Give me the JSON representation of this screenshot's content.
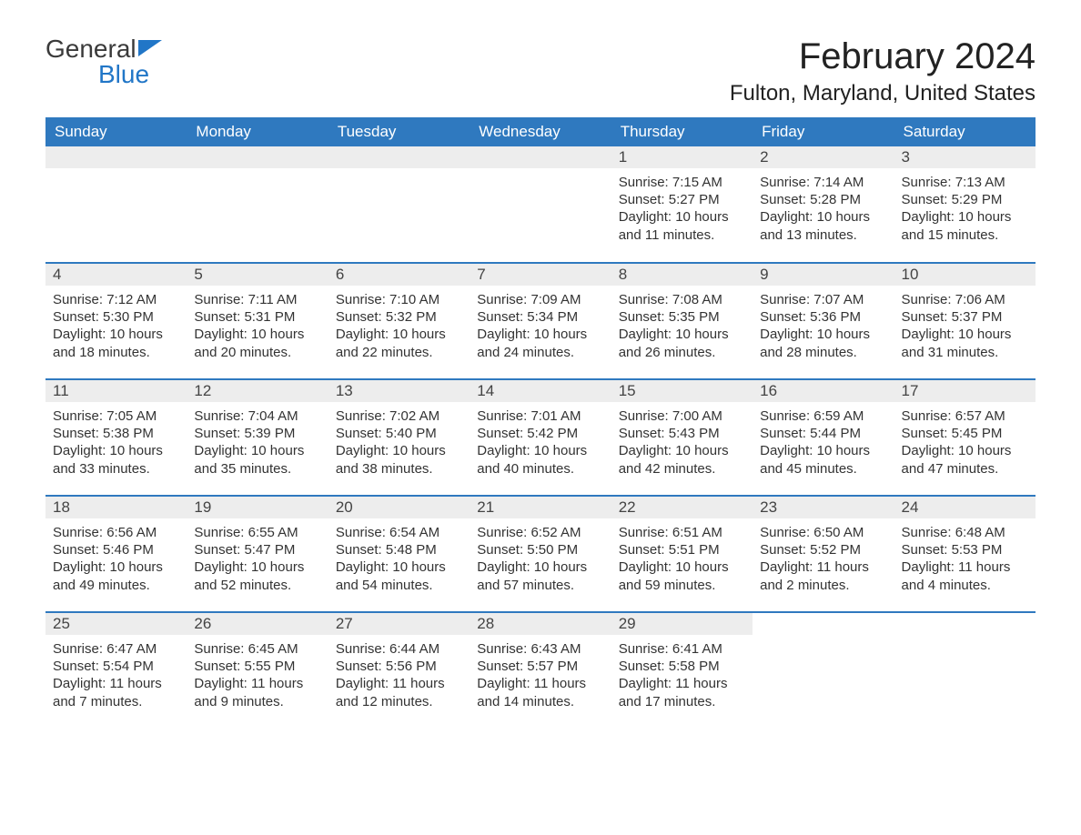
{
  "logo": {
    "word1": "General",
    "word2": "Blue"
  },
  "title": "February 2024",
  "location": "Fulton, Maryland, United States",
  "colors": {
    "header_bg": "#2f79bf",
    "header_fg": "#ffffff",
    "daynum_bg": "#ededed",
    "border": "#2f79bf",
    "logo_blue": "#2176c7",
    "text": "#333333"
  },
  "day_headers": [
    "Sunday",
    "Monday",
    "Tuesday",
    "Wednesday",
    "Thursday",
    "Friday",
    "Saturday"
  ],
  "weeks": [
    [
      null,
      null,
      null,
      null,
      {
        "n": "1",
        "sunrise": "Sunrise: 7:15 AM",
        "sunset": "Sunset: 5:27 PM",
        "daylight": "Daylight: 10 hours and 11 minutes."
      },
      {
        "n": "2",
        "sunrise": "Sunrise: 7:14 AM",
        "sunset": "Sunset: 5:28 PM",
        "daylight": "Daylight: 10 hours and 13 minutes."
      },
      {
        "n": "3",
        "sunrise": "Sunrise: 7:13 AM",
        "sunset": "Sunset: 5:29 PM",
        "daylight": "Daylight: 10 hours and 15 minutes."
      }
    ],
    [
      {
        "n": "4",
        "sunrise": "Sunrise: 7:12 AM",
        "sunset": "Sunset: 5:30 PM",
        "daylight": "Daylight: 10 hours and 18 minutes."
      },
      {
        "n": "5",
        "sunrise": "Sunrise: 7:11 AM",
        "sunset": "Sunset: 5:31 PM",
        "daylight": "Daylight: 10 hours and 20 minutes."
      },
      {
        "n": "6",
        "sunrise": "Sunrise: 7:10 AM",
        "sunset": "Sunset: 5:32 PM",
        "daylight": "Daylight: 10 hours and 22 minutes."
      },
      {
        "n": "7",
        "sunrise": "Sunrise: 7:09 AM",
        "sunset": "Sunset: 5:34 PM",
        "daylight": "Daylight: 10 hours and 24 minutes."
      },
      {
        "n": "8",
        "sunrise": "Sunrise: 7:08 AM",
        "sunset": "Sunset: 5:35 PM",
        "daylight": "Daylight: 10 hours and 26 minutes."
      },
      {
        "n": "9",
        "sunrise": "Sunrise: 7:07 AM",
        "sunset": "Sunset: 5:36 PM",
        "daylight": "Daylight: 10 hours and 28 minutes."
      },
      {
        "n": "10",
        "sunrise": "Sunrise: 7:06 AM",
        "sunset": "Sunset: 5:37 PM",
        "daylight": "Daylight: 10 hours and 31 minutes."
      }
    ],
    [
      {
        "n": "11",
        "sunrise": "Sunrise: 7:05 AM",
        "sunset": "Sunset: 5:38 PM",
        "daylight": "Daylight: 10 hours and 33 minutes."
      },
      {
        "n": "12",
        "sunrise": "Sunrise: 7:04 AM",
        "sunset": "Sunset: 5:39 PM",
        "daylight": "Daylight: 10 hours and 35 minutes."
      },
      {
        "n": "13",
        "sunrise": "Sunrise: 7:02 AM",
        "sunset": "Sunset: 5:40 PM",
        "daylight": "Daylight: 10 hours and 38 minutes."
      },
      {
        "n": "14",
        "sunrise": "Sunrise: 7:01 AM",
        "sunset": "Sunset: 5:42 PM",
        "daylight": "Daylight: 10 hours and 40 minutes."
      },
      {
        "n": "15",
        "sunrise": "Sunrise: 7:00 AM",
        "sunset": "Sunset: 5:43 PM",
        "daylight": "Daylight: 10 hours and 42 minutes."
      },
      {
        "n": "16",
        "sunrise": "Sunrise: 6:59 AM",
        "sunset": "Sunset: 5:44 PM",
        "daylight": "Daylight: 10 hours and 45 minutes."
      },
      {
        "n": "17",
        "sunrise": "Sunrise: 6:57 AM",
        "sunset": "Sunset: 5:45 PM",
        "daylight": "Daylight: 10 hours and 47 minutes."
      }
    ],
    [
      {
        "n": "18",
        "sunrise": "Sunrise: 6:56 AM",
        "sunset": "Sunset: 5:46 PM",
        "daylight": "Daylight: 10 hours and 49 minutes."
      },
      {
        "n": "19",
        "sunrise": "Sunrise: 6:55 AM",
        "sunset": "Sunset: 5:47 PM",
        "daylight": "Daylight: 10 hours and 52 minutes."
      },
      {
        "n": "20",
        "sunrise": "Sunrise: 6:54 AM",
        "sunset": "Sunset: 5:48 PM",
        "daylight": "Daylight: 10 hours and 54 minutes."
      },
      {
        "n": "21",
        "sunrise": "Sunrise: 6:52 AM",
        "sunset": "Sunset: 5:50 PM",
        "daylight": "Daylight: 10 hours and 57 minutes."
      },
      {
        "n": "22",
        "sunrise": "Sunrise: 6:51 AM",
        "sunset": "Sunset: 5:51 PM",
        "daylight": "Daylight: 10 hours and 59 minutes."
      },
      {
        "n": "23",
        "sunrise": "Sunrise: 6:50 AM",
        "sunset": "Sunset: 5:52 PM",
        "daylight": "Daylight: 11 hours and 2 minutes."
      },
      {
        "n": "24",
        "sunrise": "Sunrise: 6:48 AM",
        "sunset": "Sunset: 5:53 PM",
        "daylight": "Daylight: 11 hours and 4 minutes."
      }
    ],
    [
      {
        "n": "25",
        "sunrise": "Sunrise: 6:47 AM",
        "sunset": "Sunset: 5:54 PM",
        "daylight": "Daylight: 11 hours and 7 minutes."
      },
      {
        "n": "26",
        "sunrise": "Sunrise: 6:45 AM",
        "sunset": "Sunset: 5:55 PM",
        "daylight": "Daylight: 11 hours and 9 minutes."
      },
      {
        "n": "27",
        "sunrise": "Sunrise: 6:44 AM",
        "sunset": "Sunset: 5:56 PM",
        "daylight": "Daylight: 11 hours and 12 minutes."
      },
      {
        "n": "28",
        "sunrise": "Sunrise: 6:43 AM",
        "sunset": "Sunset: 5:57 PM",
        "daylight": "Daylight: 11 hours and 14 minutes."
      },
      {
        "n": "29",
        "sunrise": "Sunrise: 6:41 AM",
        "sunset": "Sunset: 5:58 PM",
        "daylight": "Daylight: 11 hours and 17 minutes."
      },
      null,
      null
    ]
  ]
}
